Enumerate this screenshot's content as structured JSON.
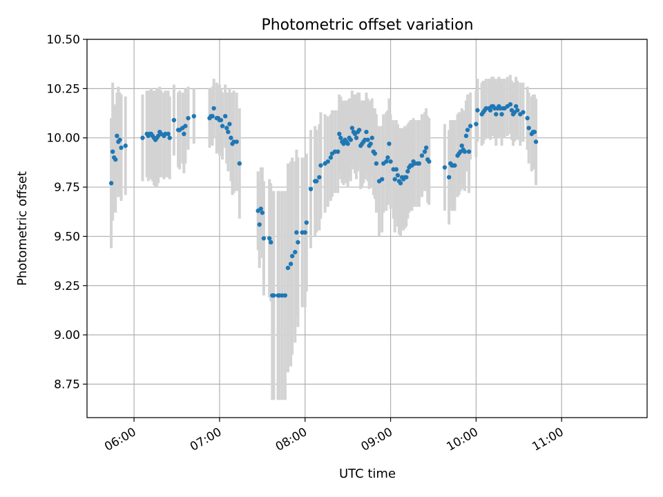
{
  "chart_data": {
    "type": "scatter",
    "title": "Photometric offset variation",
    "xlabel": "UTC time",
    "ylabel": "Photometric offset",
    "xlim": [
      "05:27",
      "12:00"
    ],
    "ylim": [
      8.58,
      10.5
    ],
    "grid": true,
    "colors": {
      "points": "#1f77b4",
      "errorbars": "#d3d3d3"
    },
    "x_ticks": [
      "06:00",
      "07:00",
      "08:00",
      "09:00",
      "10:00",
      "11:00"
    ],
    "y_ticks": [
      "8.75",
      "9.00",
      "9.25",
      "9.50",
      "9.75",
      "10.00",
      "10.25",
      "10.50"
    ],
    "points": [
      {
        "t": "05:44",
        "y": 9.77,
        "err": 0.33
      },
      {
        "t": "05:45",
        "y": 9.93,
        "err": 0.35
      },
      {
        "t": "05:46",
        "y": 9.9,
        "err": 0.27
      },
      {
        "t": "05:47",
        "y": 9.89,
        "err": 0.27
      },
      {
        "t": "05:48",
        "y": 10.01,
        "err": 0.22
      },
      {
        "t": "05:49",
        "y": 9.98,
        "err": 0.28
      },
      {
        "t": "05:50",
        "y": 9.99,
        "err": 0.24
      },
      {
        "t": "05:51",
        "y": 9.95,
        "err": 0.27
      },
      {
        "t": "05:54",
        "y": 9.96,
        "err": 0.25
      },
      {
        "t": "06:06",
        "y": 10.0,
        "err": 0.22
      },
      {
        "t": "06:09",
        "y": 10.02,
        "err": 0.22
      },
      {
        "t": "06:10",
        "y": 10.01,
        "err": 0.23
      },
      {
        "t": "06:11",
        "y": 10.02,
        "err": 0.22
      },
      {
        "t": "06:12",
        "y": 10.02,
        "err": 0.23
      },
      {
        "t": "06:13",
        "y": 10.01,
        "err": 0.23
      },
      {
        "t": "06:14",
        "y": 10.0,
        "err": 0.24
      },
      {
        "t": "06:15",
        "y": 9.99,
        "err": 0.24
      },
      {
        "t": "06:16",
        "y": 10.0,
        "err": 0.25
      },
      {
        "t": "06:17",
        "y": 10.01,
        "err": 0.24
      },
      {
        "t": "06:18",
        "y": 10.03,
        "err": 0.23
      },
      {
        "t": "06:19",
        "y": 10.02,
        "err": 0.22
      },
      {
        "t": "06:21",
        "y": 10.01,
        "err": 0.22
      },
      {
        "t": "06:22",
        "y": 10.02,
        "err": 0.22
      },
      {
        "t": "06:24",
        "y": 10.02,
        "err": 0.22
      },
      {
        "t": "06:25",
        "y": 10.0,
        "err": 0.21
      },
      {
        "t": "06:28",
        "y": 10.09,
        "err": 0.18
      },
      {
        "t": "06:31",
        "y": 10.04,
        "err": 0.19
      },
      {
        "t": "06:32",
        "y": 10.04,
        "err": 0.2
      },
      {
        "t": "06:34",
        "y": 10.05,
        "err": 0.18
      },
      {
        "t": "06:35",
        "y": 10.02,
        "err": 0.2
      },
      {
        "t": "06:36",
        "y": 10.06,
        "err": 0.19
      },
      {
        "t": "06:38",
        "y": 10.1,
        "err": 0.16
      },
      {
        "t": "06:42",
        "y": 10.11,
        "err": 0.14
      },
      {
        "t": "06:53",
        "y": 10.1,
        "err": 0.15
      },
      {
        "t": "06:54",
        "y": 10.11,
        "err": 0.14
      },
      {
        "t": "06:55",
        "y": 10.11,
        "err": 0.15
      },
      {
        "t": "06:56",
        "y": 10.15,
        "err": 0.15
      },
      {
        "t": "06:58",
        "y": 10.1,
        "err": 0.18
      },
      {
        "t": "06:59",
        "y": 10.1,
        "err": 0.17
      },
      {
        "t": "07:00",
        "y": 10.09,
        "err": 0.18
      },
      {
        "t": "07:01",
        "y": 10.09,
        "err": 0.16
      },
      {
        "t": "07:02",
        "y": 10.06,
        "err": 0.17
      },
      {
        "t": "07:04",
        "y": 10.11,
        "err": 0.16
      },
      {
        "t": "07:05",
        "y": 10.05,
        "err": 0.18
      },
      {
        "t": "07:06",
        "y": 10.03,
        "err": 0.2
      },
      {
        "t": "07:07",
        "y": 10.07,
        "err": 0.18
      },
      {
        "t": "07:08",
        "y": 10.0,
        "err": 0.22
      },
      {
        "t": "07:09",
        "y": 9.97,
        "err": 0.26
      },
      {
        "t": "07:10",
        "y": 9.98,
        "err": 0.26
      },
      {
        "t": "07:12",
        "y": 9.98,
        "err": 0.25
      },
      {
        "t": "07:14",
        "y": 9.87,
        "err": 0.28
      },
      {
        "t": "07:27",
        "y": 9.63,
        "err": 0.2
      },
      {
        "t": "07:28",
        "y": 9.56,
        "err": 0.22
      },
      {
        "t": "07:29",
        "y": 9.64,
        "err": 0.21
      },
      {
        "t": "07:30",
        "y": 9.62,
        "err": 0.23
      },
      {
        "t": "07:31",
        "y": 9.49,
        "err": 0.29
      },
      {
        "t": "07:35",
        "y": 9.49,
        "err": 0.3
      },
      {
        "t": "07:36",
        "y": 9.47,
        "err": 0.3
      },
      {
        "t": "07:37",
        "y": 9.2,
        "err": 0.53
      },
      {
        "t": "07:38",
        "y": 9.2,
        "err": 0.53
      },
      {
        "t": "07:41",
        "y": 9.2,
        "err": 0.53
      },
      {
        "t": "07:42",
        "y": 9.2,
        "err": 0.53
      },
      {
        "t": "07:44",
        "y": 9.2,
        "err": 0.53
      },
      {
        "t": "07:46",
        "y": 9.2,
        "err": 0.53
      },
      {
        "t": "07:48",
        "y": 9.34,
        "err": 0.53
      },
      {
        "t": "07:50",
        "y": 9.36,
        "err": 0.52
      },
      {
        "t": "07:51",
        "y": 9.4,
        "err": 0.5
      },
      {
        "t": "07:53",
        "y": 9.42,
        "err": 0.46
      },
      {
        "t": "07:54",
        "y": 9.52,
        "err": 0.42
      },
      {
        "t": "07:55",
        "y": 9.47,
        "err": 0.43
      },
      {
        "t": "07:58",
        "y": 9.52,
        "err": 0.38
      },
      {
        "t": "08:00",
        "y": 9.52,
        "err": 0.38
      },
      {
        "t": "08:01",
        "y": 9.57,
        "err": 0.35
      },
      {
        "t": "08:04",
        "y": 9.74,
        "err": 0.3
      },
      {
        "t": "08:07",
        "y": 9.78,
        "err": 0.28
      },
      {
        "t": "08:08",
        "y": 9.78,
        "err": 0.26
      },
      {
        "t": "08:10",
        "y": 9.8,
        "err": 0.27
      },
      {
        "t": "08:11",
        "y": 9.86,
        "err": 0.27
      },
      {
        "t": "08:14",
        "y": 9.87,
        "err": 0.25
      },
      {
        "t": "08:16",
        "y": 9.88,
        "err": 0.23
      },
      {
        "t": "08:18",
        "y": 9.9,
        "err": 0.22
      },
      {
        "t": "08:19",
        "y": 9.92,
        "err": 0.22
      },
      {
        "t": "08:21",
        "y": 9.93,
        "err": 0.21
      },
      {
        "t": "08:23",
        "y": 9.93,
        "err": 0.21
      },
      {
        "t": "08:24",
        "y": 10.02,
        "err": 0.2
      },
      {
        "t": "08:25",
        "y": 10.0,
        "err": 0.21
      },
      {
        "t": "08:26",
        "y": 9.98,
        "err": 0.21
      },
      {
        "t": "08:27",
        "y": 9.97,
        "err": 0.21
      },
      {
        "t": "08:28",
        "y": 9.99,
        "err": 0.2
      },
      {
        "t": "08:29",
        "y": 9.98,
        "err": 0.21
      },
      {
        "t": "08:30",
        "y": 9.97,
        "err": 0.22
      },
      {
        "t": "08:31",
        "y": 10.0,
        "err": 0.2
      },
      {
        "t": "08:32",
        "y": 9.99,
        "err": 0.21
      },
      {
        "t": "08:33",
        "y": 10.05,
        "err": 0.19
      },
      {
        "t": "08:34",
        "y": 10.03,
        "err": 0.19
      },
      {
        "t": "08:35",
        "y": 10.02,
        "err": 0.2
      },
      {
        "t": "08:36",
        "y": 10.0,
        "err": 0.21
      },
      {
        "t": "08:37",
        "y": 10.03,
        "err": 0.2
      },
      {
        "t": "08:38",
        "y": 10.04,
        "err": 0.19
      },
      {
        "t": "08:39",
        "y": 9.96,
        "err": 0.22
      },
      {
        "t": "08:40",
        "y": 9.97,
        "err": 0.22
      },
      {
        "t": "08:41",
        "y": 9.98,
        "err": 0.21
      },
      {
        "t": "08:42",
        "y": 9.99,
        "err": 0.2
      },
      {
        "t": "08:43",
        "y": 10.03,
        "err": 0.2
      },
      {
        "t": "08:44",
        "y": 9.99,
        "err": 0.21
      },
      {
        "t": "08:45",
        "y": 9.96,
        "err": 0.22
      },
      {
        "t": "08:46",
        "y": 9.97,
        "err": 0.22
      },
      {
        "t": "08:47",
        "y": 10.0,
        "err": 0.2
      },
      {
        "t": "08:48",
        "y": 9.93,
        "err": 0.22
      },
      {
        "t": "08:49",
        "y": 9.92,
        "err": 0.23
      },
      {
        "t": "08:50",
        "y": 9.87,
        "err": 0.25
      },
      {
        "t": "08:52",
        "y": 9.78,
        "err": 0.28
      },
      {
        "t": "08:54",
        "y": 9.79,
        "err": 0.27
      },
      {
        "t": "08:55",
        "y": 9.87,
        "err": 0.25
      },
      {
        "t": "08:57",
        "y": 9.88,
        "err": 0.25
      },
      {
        "t": "08:58",
        "y": 9.9,
        "err": 0.24
      },
      {
        "t": "08:59",
        "y": 9.97,
        "err": 0.23
      },
      {
        "t": "09:00",
        "y": 9.88,
        "err": 0.24
      },
      {
        "t": "09:02",
        "y": 9.84,
        "err": 0.25
      },
      {
        "t": "09:03",
        "y": 9.79,
        "err": 0.27
      },
      {
        "t": "09:04",
        "y": 9.84,
        "err": 0.25
      },
      {
        "t": "09:05",
        "y": 9.81,
        "err": 0.26
      },
      {
        "t": "09:06",
        "y": 9.78,
        "err": 0.27
      },
      {
        "t": "09:07",
        "y": 9.77,
        "err": 0.27
      },
      {
        "t": "09:08",
        "y": 9.8,
        "err": 0.25
      },
      {
        "t": "09:09",
        "y": 9.79,
        "err": 0.26
      },
      {
        "t": "09:10",
        "y": 9.8,
        "err": 0.26
      },
      {
        "t": "09:11",
        "y": 9.8,
        "err": 0.25
      },
      {
        "t": "09:12",
        "y": 9.83,
        "err": 0.24
      },
      {
        "t": "09:13",
        "y": 9.85,
        "err": 0.23
      },
      {
        "t": "09:14",
        "y": 9.86,
        "err": 0.23
      },
      {
        "t": "09:15",
        "y": 9.86,
        "err": 0.23
      },
      {
        "t": "09:16",
        "y": 9.88,
        "err": 0.22
      },
      {
        "t": "09:17",
        "y": 9.87,
        "err": 0.22
      },
      {
        "t": "09:19",
        "y": 9.87,
        "err": 0.22
      },
      {
        "t": "09:20",
        "y": 9.87,
        "err": 0.22
      },
      {
        "t": "09:22",
        "y": 9.91,
        "err": 0.21
      },
      {
        "t": "09:24",
        "y": 9.93,
        "err": 0.2
      },
      {
        "t": "09:25",
        "y": 9.95,
        "err": 0.2
      },
      {
        "t": "09:26",
        "y": 9.89,
        "err": 0.22
      },
      {
        "t": "09:27",
        "y": 9.88,
        "err": 0.22
      },
      {
        "t": "09:38",
        "y": 9.85,
        "err": 0.22
      },
      {
        "t": "09:41",
        "y": 9.8,
        "err": 0.24
      },
      {
        "t": "09:42",
        "y": 9.87,
        "err": 0.22
      },
      {
        "t": "09:43",
        "y": 9.86,
        "err": 0.23
      },
      {
        "t": "09:44",
        "y": 9.86,
        "err": 0.23
      },
      {
        "t": "09:45",
        "y": 9.86,
        "err": 0.23
      },
      {
        "t": "09:47",
        "y": 9.91,
        "err": 0.21
      },
      {
        "t": "09:48",
        "y": 9.92,
        "err": 0.21
      },
      {
        "t": "09:49",
        "y": 9.93,
        "err": 0.2
      },
      {
        "t": "09:50",
        "y": 9.96,
        "err": 0.19
      },
      {
        "t": "09:51",
        "y": 9.94,
        "err": 0.2
      },
      {
        "t": "09:52",
        "y": 9.93,
        "err": 0.2
      },
      {
        "t": "09:53",
        "y": 10.01,
        "err": 0.18
      },
      {
        "t": "09:54",
        "y": 10.04,
        "err": 0.18
      },
      {
        "t": "09:55",
        "y": 9.93,
        "err": 0.21
      },
      {
        "t": "09:56",
        "y": 10.06,
        "err": 0.17
      },
      {
        "t": "10:00",
        "y": 10.07,
        "err": 0.17
      },
      {
        "t": "10:01",
        "y": 10.14,
        "err": 0.16
      },
      {
        "t": "10:04",
        "y": 10.12,
        "err": 0.16
      },
      {
        "t": "10:05",
        "y": 10.13,
        "err": 0.16
      },
      {
        "t": "10:06",
        "y": 10.14,
        "err": 0.15
      },
      {
        "t": "10:07",
        "y": 10.15,
        "err": 0.15
      },
      {
        "t": "10:09",
        "y": 10.15,
        "err": 0.15
      },
      {
        "t": "10:10",
        "y": 10.14,
        "err": 0.15
      },
      {
        "t": "10:11",
        "y": 10.16,
        "err": 0.15
      },
      {
        "t": "10:12",
        "y": 10.16,
        "err": 0.15
      },
      {
        "t": "10:13",
        "y": 10.15,
        "err": 0.15
      },
      {
        "t": "10:14",
        "y": 10.12,
        "err": 0.16
      },
      {
        "t": "10:15",
        "y": 10.15,
        "err": 0.15
      },
      {
        "t": "10:16",
        "y": 10.16,
        "err": 0.15
      },
      {
        "t": "10:17",
        "y": 10.15,
        "err": 0.15
      },
      {
        "t": "10:18",
        "y": 10.12,
        "err": 0.16
      },
      {
        "t": "10:19",
        "y": 10.15,
        "err": 0.15
      },
      {
        "t": "10:20",
        "y": 10.15,
        "err": 0.15
      },
      {
        "t": "10:22",
        "y": 10.16,
        "err": 0.15
      },
      {
        "t": "10:24",
        "y": 10.17,
        "err": 0.15
      },
      {
        "t": "10:25",
        "y": 10.14,
        "err": 0.15
      },
      {
        "t": "10:26",
        "y": 10.12,
        "err": 0.16
      },
      {
        "t": "10:27",
        "y": 10.13,
        "err": 0.15
      },
      {
        "t": "10:28",
        "y": 10.16,
        "err": 0.15
      },
      {
        "t": "10:29",
        "y": 10.14,
        "err": 0.15
      },
      {
        "t": "10:31",
        "y": 10.12,
        "err": 0.16
      },
      {
        "t": "10:33",
        "y": 10.13,
        "err": 0.15
      },
      {
        "t": "10:36",
        "y": 10.1,
        "err": 0.16
      },
      {
        "t": "10:37",
        "y": 10.05,
        "err": 0.18
      },
      {
        "t": "10:39",
        "y": 10.02,
        "err": 0.19
      },
      {
        "t": "10:40",
        "y": 10.03,
        "err": 0.19
      },
      {
        "t": "10:41",
        "y": 10.03,
        "err": 0.19
      },
      {
        "t": "10:42",
        "y": 9.98,
        "err": 0.22
      }
    ]
  }
}
